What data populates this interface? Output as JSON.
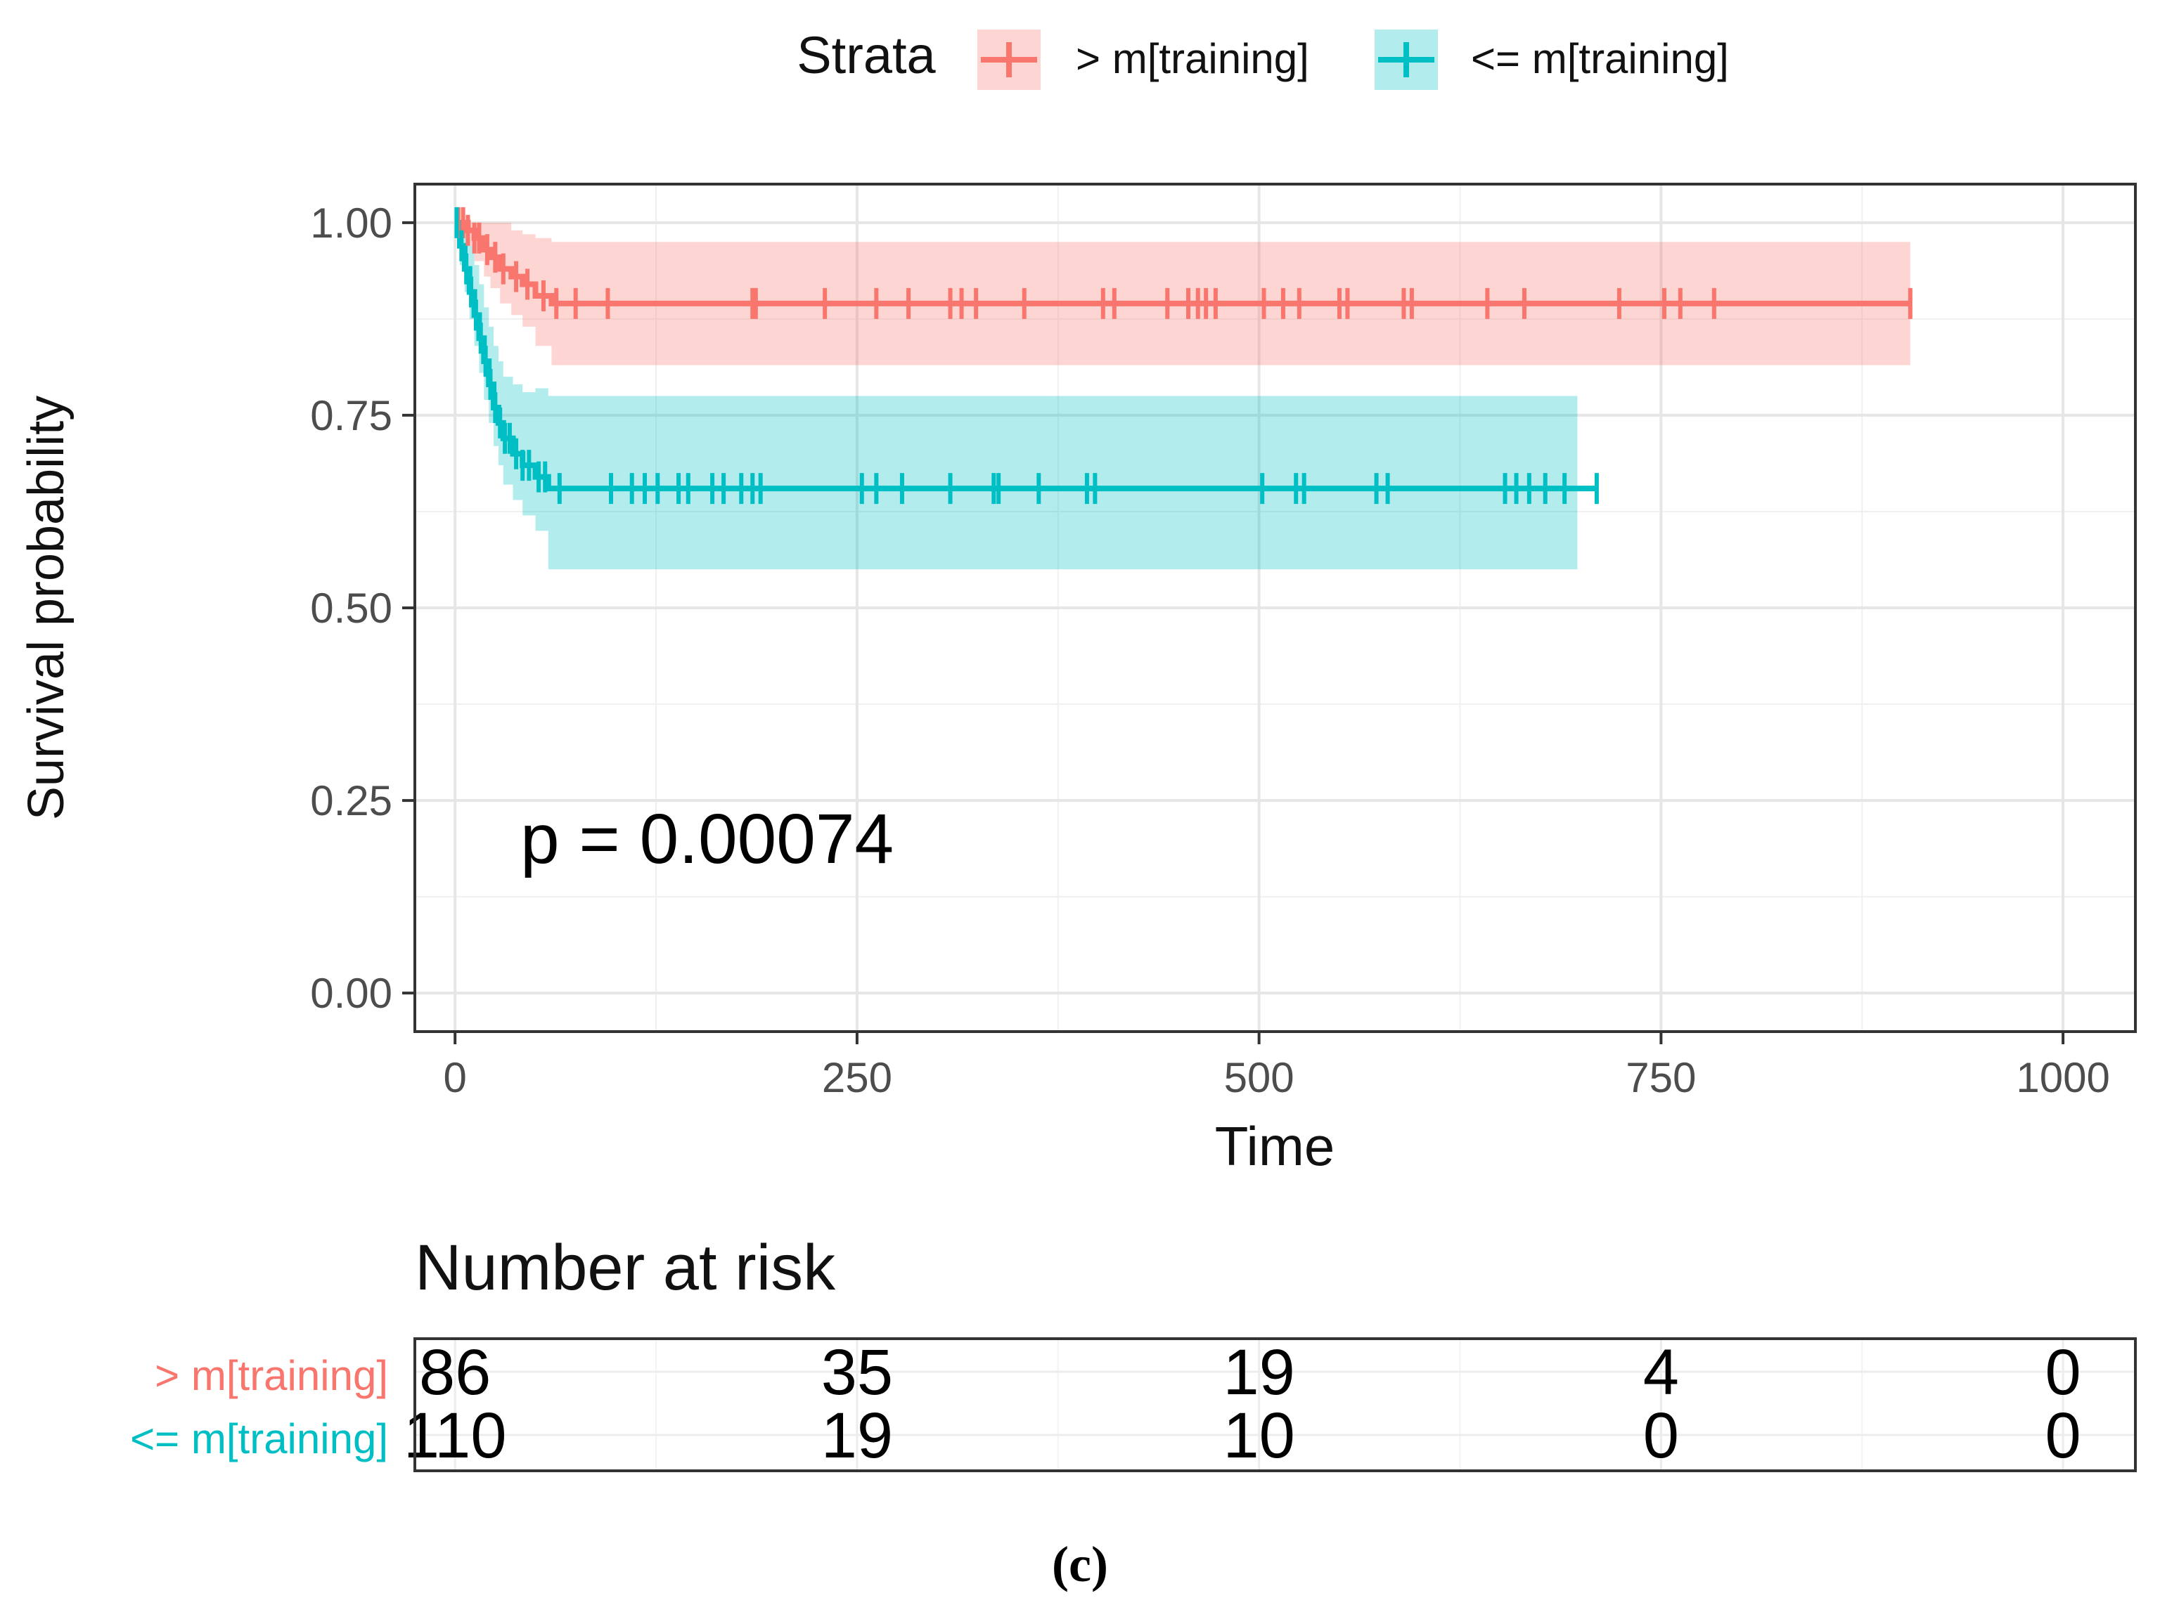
{
  "chart_data": {
    "type": "line",
    "subtype": "kaplan-meier",
    "title": "",
    "xlabel": "Time",
    "ylabel": "Survival probability",
    "xlim": [
      -25,
      1045
    ],
    "ylim": [
      -0.05,
      1.05
    ],
    "x_ticks": [
      "0",
      "250",
      "500",
      "750",
      "1000"
    ],
    "x_tick_values": [
      0,
      250,
      500,
      750,
      1000
    ],
    "y_ticks": [
      "0.00",
      "0.25",
      "0.50",
      "0.75",
      "1.00"
    ],
    "y_tick_values": [
      0,
      0.25,
      0.5,
      0.75,
      1.0
    ],
    "grid": true,
    "legend": {
      "title": "Strata",
      "position": "top",
      "entries": [
        "> m[training]",
        "<= m[training]"
      ]
    },
    "annotation": "p = 0.00074",
    "series": [
      {
        "name": "> m[training]",
        "color": "#F8766D",
        "fill": "#F8766D",
        "x": [
          0,
          8,
          12,
          18,
          22,
          28,
          35,
          42,
          50,
          60,
          905
        ],
        "y": [
          1.0,
          0.99,
          0.98,
          0.965,
          0.955,
          0.94,
          0.93,
          0.92,
          0.905,
          0.895,
          0.895
        ],
        "lower": [
          1.0,
          0.97,
          0.95,
          0.93,
          0.915,
          0.895,
          0.88,
          0.865,
          0.84,
          0.815,
          0.815
        ],
        "upper": [
          1.0,
          1.0,
          1.0,
          1.0,
          1.0,
          1.0,
          0.99,
          0.985,
          0.98,
          0.975,
          0.975
        ],
        "band_end": 905,
        "censor": [
          2,
          5,
          8,
          12,
          15,
          20,
          25,
          30,
          38,
          45,
          55,
          63,
          75,
          95,
          185,
          187,
          230,
          262,
          282,
          308,
          315,
          324,
          354,
          403,
          410,
          443,
          456,
          462,
          467,
          473,
          503,
          515,
          525,
          550,
          555,
          590,
          595,
          642,
          665,
          724,
          752,
          762,
          783,
          905
        ]
      },
      {
        "name": "<= m[training]",
        "color": "#00BFC4",
        "fill": "#00BFC4",
        "x": [
          0,
          3,
          6,
          9,
          12,
          15,
          18,
          21,
          24,
          27,
          30,
          36,
          42,
          50,
          58,
          710
        ],
        "y": [
          1.0,
          0.97,
          0.94,
          0.91,
          0.88,
          0.85,
          0.82,
          0.79,
          0.76,
          0.74,
          0.72,
          0.7,
          0.685,
          0.67,
          0.655,
          0.655
        ],
        "lower": [
          1.0,
          0.945,
          0.91,
          0.875,
          0.84,
          0.805,
          0.77,
          0.74,
          0.71,
          0.685,
          0.66,
          0.64,
          0.62,
          0.6,
          0.55,
          0.55
        ],
        "upper": [
          1.0,
          1.0,
          0.99,
          0.97,
          0.945,
          0.92,
          0.89,
          0.865,
          0.84,
          0.82,
          0.8,
          0.79,
          0.78,
          0.785,
          0.775,
          0.775
        ],
        "band_end": 698,
        "censor": [
          1,
          4,
          7,
          10,
          13,
          16,
          19,
          22,
          25,
          28,
          31,
          34,
          38,
          42,
          46,
          52,
          56,
          65,
          97,
          110,
          118,
          126,
          139,
          145,
          160,
          167,
          178,
          185,
          190,
          253,
          262,
          278,
          308,
          335,
          338,
          363,
          393,
          398,
          502,
          523,
          528,
          573,
          580,
          653,
          660,
          668,
          678,
          690,
          710
        ]
      }
    ],
    "risk_table": {
      "title": "Number at risk",
      "times": [
        0,
        250,
        500,
        750,
        1000
      ],
      "rows": [
        {
          "label": "> m[training]",
          "color": "#F8766D",
          "values": [
            "86",
            "35",
            "19",
            "4",
            "0"
          ]
        },
        {
          "label": "<= m[training]",
          "color": "#00BFC4",
          "values": [
            "110",
            "19",
            "10",
            "0",
            "0"
          ]
        }
      ]
    },
    "panel_label": "(c)"
  }
}
